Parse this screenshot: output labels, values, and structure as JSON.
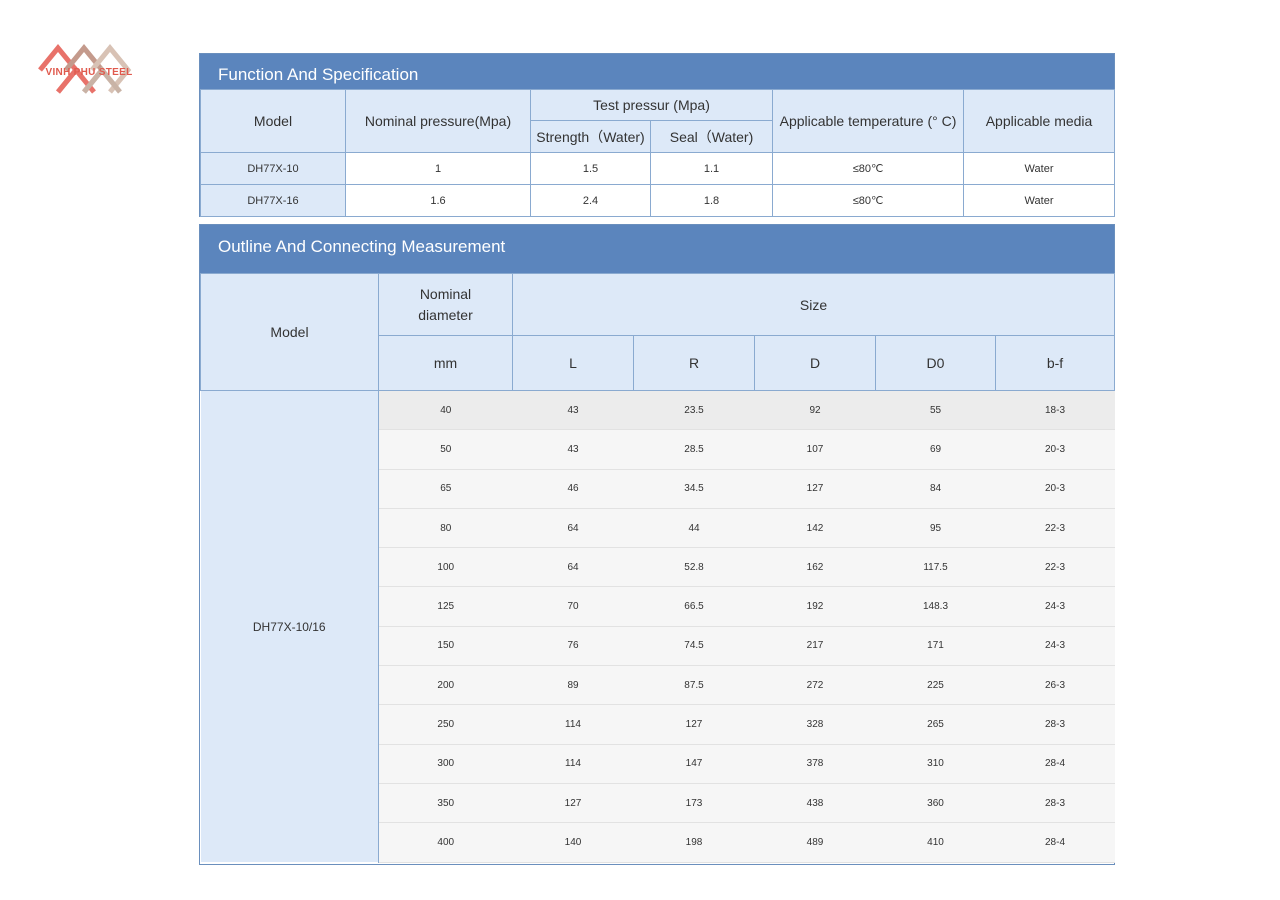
{
  "logo": {
    "text": "VINH PHU STEEL"
  },
  "spec": {
    "title": "Function And Specification",
    "headers": {
      "model": "Model",
      "nominal_pressure": "Nominal pressure(Mpa)",
      "test_pressure": "Test pressur (Mpa)",
      "strength": "Strength（Water)",
      "seal": "Seal（Water)",
      "temperature": "Applicable temperature (° C)",
      "media": "Applicable media"
    },
    "rows": [
      {
        "model": "DH77X-10",
        "nominal": "1",
        "strength": "1.5",
        "seal": "1.1",
        "temp": "≤80℃",
        "media": "Water"
      },
      {
        "model": "DH77X-16",
        "nominal": "1.6",
        "strength": "2.4",
        "seal": "1.8",
        "temp": "≤80℃",
        "media": "Water"
      }
    ]
  },
  "outline": {
    "title": "Outline And Connecting Measurement",
    "headers": {
      "model": "Model",
      "nominal_diameter": "Nominal diameter",
      "size": "Size",
      "mm": "mm",
      "L": "L",
      "R": "R",
      "D": "D",
      "D0": "D0",
      "bf": "b-f"
    },
    "model": "DH77X-10/16",
    "rows": [
      {
        "dn": "40",
        "L": "43",
        "R": "23.5",
        "D": "92",
        "D0": "55",
        "bf": "18-3"
      },
      {
        "dn": "50",
        "L": "43",
        "R": "28.5",
        "D": "107",
        "D0": "69",
        "bf": "20-3"
      },
      {
        "dn": "65",
        "L": "46",
        "R": "34.5",
        "D": "127",
        "D0": "84",
        "bf": "20-3"
      },
      {
        "dn": "80",
        "L": "64",
        "R": "44",
        "D": "142",
        "D0": "95",
        "bf": "22-3"
      },
      {
        "dn": "100",
        "L": "64",
        "R": "52.8",
        "D": "162",
        "D0": "117.5",
        "bf": "22-3"
      },
      {
        "dn": "125",
        "L": "70",
        "R": "66.5",
        "D": "192",
        "D0": "148.3",
        "bf": "24-3"
      },
      {
        "dn": "150",
        "L": "76",
        "R": "74.5",
        "D": "217",
        "D0": "171",
        "bf": "24-3"
      },
      {
        "dn": "200",
        "L": "89",
        "R": "87.5",
        "D": "272",
        "D0": "225",
        "bf": "26-3"
      },
      {
        "dn": "250",
        "L": "114",
        "R": "127",
        "D": "328",
        "D0": "265",
        "bf": "28-3"
      },
      {
        "dn": "300",
        "L": "114",
        "R": "147",
        "D": "378",
        "D0": "310",
        "bf": "28-4"
      },
      {
        "dn": "350",
        "L": "127",
        "R": "173",
        "D": "438",
        "D0": "360",
        "bf": "28-3"
      },
      {
        "dn": "400",
        "L": "140",
        "R": "198",
        "D": "489",
        "D0": "410",
        "bf": "28-4"
      }
    ]
  }
}
